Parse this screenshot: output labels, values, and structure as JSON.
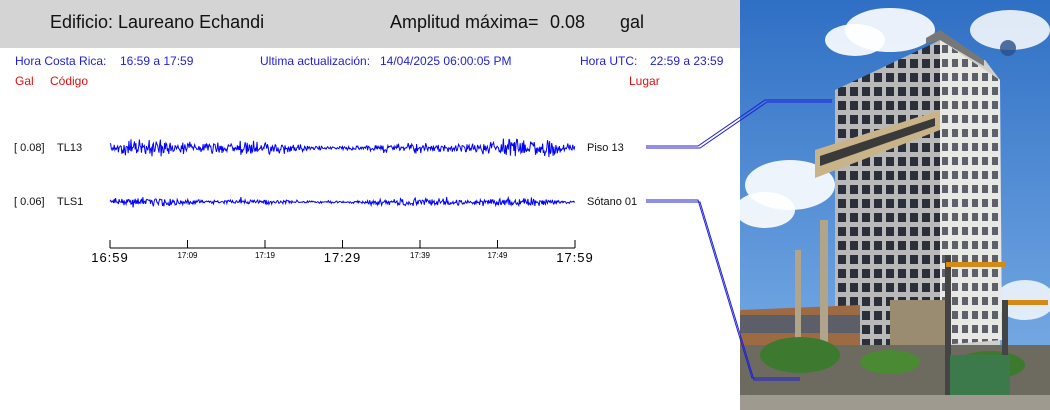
{
  "header": {
    "building_label": "Edificio: Laureano Echandi",
    "amplitude_label": "Amplitud máxima=",
    "amplitude_value": "0.08",
    "amplitude_unit": "gal"
  },
  "info": {
    "cr_time_label": "Hora Costa Rica:",
    "cr_time_value": "16:59 a 17:59",
    "update_label": "Ultima actualización:",
    "update_value": "14/04/2025 06:00:05 PM",
    "utc_label": "Hora UTC:",
    "utc_value": "22:59 a 23:59"
  },
  "columns": {
    "gal": "Gal",
    "code": "Código",
    "place": "Lugar"
  },
  "channels": [
    {
      "amp": "[   0.08]",
      "code": "TL13",
      "place": "Piso 13",
      "color": "#0000ff",
      "peak": 0.08
    },
    {
      "amp": "[   0.06]",
      "code": "TLS1",
      "place": "Sótano 01",
      "color": "#0000ff",
      "peak": 0.06
    }
  ],
  "time_axis": {
    "ticks": [
      "16:59",
      "17:09",
      "17:19",
      "17:29",
      "17:39",
      "17:49",
      "17:59"
    ],
    "major": [
      true,
      false,
      false,
      true,
      false,
      false,
      true
    ]
  }
}
